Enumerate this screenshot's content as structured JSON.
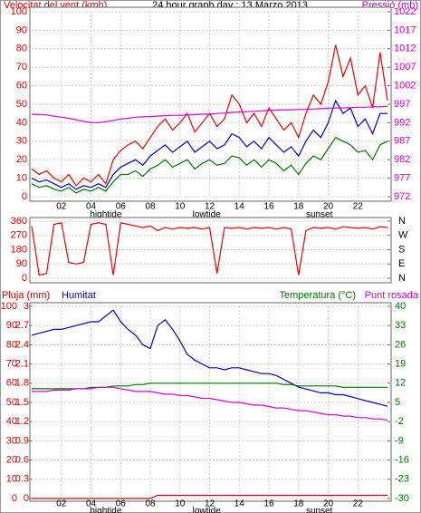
{
  "chart_data": [
    {
      "type": "line",
      "title": "24 hour graph day : 13 Marzo 2013",
      "ylabel": "Velocitat del vent (kmh)",
      "y2label": "Pressió (mb)",
      "ycolor": "#dd0000",
      "y2color": "#cc00cc",
      "grid": true,
      "x": [
        0,
        0.5,
        1,
        1.5,
        2,
        2.5,
        3,
        3.5,
        4,
        4.5,
        5,
        5.5,
        6,
        6.5,
        7,
        7.5,
        8,
        8.5,
        9,
        9.5,
        10,
        10.5,
        11,
        11.5,
        12,
        12.5,
        13,
        13.5,
        14,
        14.5,
        15,
        15.5,
        16,
        16.5,
        17,
        17.5,
        18,
        18.5,
        19,
        19.5,
        20,
        20.5,
        21,
        21.5,
        22,
        22.5,
        23,
        23.5,
        24
      ],
      "xlim": [
        0,
        24
      ],
      "xticks": [
        {
          "value": 2,
          "label": "02"
        },
        {
          "value": 4,
          "label": "04"
        },
        {
          "value": 6,
          "label": "06"
        },
        {
          "value": 8,
          "label": "08"
        },
        10,
        12,
        14,
        16,
        18,
        20,
        22
      ],
      "ylim": [
        0,
        100
      ],
      "yticks": [
        0,
        10,
        20,
        30,
        40,
        50,
        60,
        70,
        80,
        90,
        100
      ],
      "y2lim": [
        972,
        1022
      ],
      "y2ticks": [
        972,
        977,
        982,
        987,
        992,
        997,
        1002,
        1007,
        1012,
        1017,
        1022
      ],
      "annotations": [
        {
          "text": "hightide",
          "x": 5
        },
        {
          "text": "lowtide",
          "x": 11.8
        },
        {
          "text": "sunset",
          "x": 19.4
        }
      ],
      "series": [
        {
          "color": "#ee0000",
          "values": [
            15,
            12,
            14,
            10,
            8,
            12,
            6,
            10,
            8,
            12,
            7,
            20,
            25,
            28,
            30,
            26,
            32,
            38,
            42,
            36,
            40,
            45,
            35,
            40,
            45,
            38,
            42,
            55,
            50,
            40,
            45,
            38,
            48,
            42,
            36,
            40,
            32,
            45,
            55,
            50,
            62,
            82,
            65,
            75,
            55,
            60,
            48,
            78,
            52
          ]
        },
        {
          "color": "#0000cc",
          "values": [
            10,
            8,
            9,
            7,
            5,
            7,
            4,
            6,
            5,
            7,
            5,
            12,
            16,
            18,
            20,
            17,
            22,
            25,
            28,
            24,
            27,
            30,
            24,
            27,
            30,
            26,
            28,
            34,
            32,
            27,
            30,
            26,
            32,
            28,
            24,
            27,
            22,
            30,
            36,
            32,
            40,
            52,
            45,
            48,
            38,
            42,
            34,
            45,
            45
          ]
        },
        {
          "color": "#007700",
          "values": [
            7,
            5,
            6,
            4,
            3,
            5,
            2,
            4,
            3,
            5,
            3,
            8,
            12,
            12,
            14,
            11,
            15,
            17,
            20,
            16,
            18,
            20,
            15,
            18,
            20,
            17,
            18,
            22,
            21,
            17,
            20,
            16,
            20,
            18,
            14,
            17,
            12,
            18,
            22,
            20,
            26,
            32,
            30,
            28,
            24,
            25,
            20,
            28,
            30
          ]
        },
        {
          "color": "#dd00dd",
          "axis": "y2",
          "values": [
            994.3,
            994.2,
            994.1,
            993.8,
            993.5,
            993.2,
            992.8,
            992.4,
            992.0,
            992.0,
            992.3,
            992.6,
            993.0,
            993.2,
            993.5,
            993.6,
            993.7,
            993.8,
            993.9,
            994.0,
            994.0,
            994.1,
            994.2,
            994.3,
            994.3,
            994.5,
            994.6,
            994.8,
            994.9,
            995.0,
            995.1,
            995.2,
            995.3,
            995.4,
            995.5,
            995.5,
            995.6,
            995.6,
            995.7,
            995.8,
            995.9,
            996.0,
            996.0,
            996.1,
            996.2,
            996.2,
            996.3,
            996.3,
            996.4
          ]
        }
      ]
    },
    {
      "type": "line",
      "ycolor": "#dd0000",
      "y2color": "#000000",
      "grid": true,
      "x": [
        0,
        0.5,
        1,
        1.5,
        2,
        2.5,
        3,
        3.5,
        4,
        4.5,
        5,
        5.5,
        6,
        6.5,
        7,
        7.5,
        8,
        8.5,
        9,
        9.5,
        10,
        10.5,
        11,
        11.5,
        12,
        12.5,
        13,
        13.5,
        14,
        14.5,
        15,
        15.5,
        16,
        16.5,
        17,
        17.5,
        18,
        18.5,
        19,
        19.5,
        20,
        20.5,
        21,
        21.5,
        22,
        22.5,
        23,
        23.5,
        24
      ],
      "xlim": [
        0,
        24
      ],
      "ylim": [
        0,
        360
      ],
      "yticks": [
        0,
        90,
        180,
        270,
        360
      ],
      "y2lim": [
        0,
        360
      ],
      "y2ticks": [
        {
          "value": 0,
          "label": "N"
        },
        {
          "value": 90,
          "label": "E"
        },
        {
          "value": 180,
          "label": "S"
        },
        {
          "value": 270,
          "label": "W"
        },
        {
          "value": 360,
          "label": "N"
        }
      ],
      "series": [
        {
          "color": "#ee0000",
          "values": [
            330,
            20,
            30,
            340,
            350,
            100,
            90,
            100,
            340,
            350,
            340,
            20,
            350,
            340,
            330,
            320,
            330,
            300,
            320,
            310,
            320,
            315,
            320,
            310,
            320,
            30,
            320,
            315,
            320,
            310,
            320,
            315,
            320,
            310,
            320,
            310,
            20,
            300,
            320,
            315,
            320,
            310,
            325,
            320,
            315,
            320,
            310,
            325,
            320
          ]
        }
      ]
    },
    {
      "type": "line",
      "ycolor": "#dd0000",
      "y2color": "#007700",
      "y3color": "#dd0000",
      "grid": true,
      "x": [
        0,
        0.5,
        1,
        1.5,
        2,
        2.5,
        3,
        3.5,
        4,
        4.5,
        5,
        5.5,
        6,
        6.5,
        7,
        7.5,
        8,
        8.5,
        9,
        9.5,
        10,
        10.5,
        11,
        11.5,
        12,
        12.5,
        13,
        13.5,
        14,
        14.5,
        15,
        15.5,
        16,
        16.5,
        17,
        17.5,
        18,
        18.5,
        19,
        19.5,
        20,
        20.5,
        21,
        21.5,
        22,
        22.5,
        23,
        23.5,
        24
      ],
      "xlim": [
        0,
        24
      ],
      "xticks": [
        {
          "value": 2,
          "label": "02"
        },
        {
          "value": 4,
          "label": "04"
        },
        {
          "value": 6,
          "label": "06"
        },
        {
          "value": 8,
          "label": "08"
        },
        10,
        12,
        14,
        16,
        18,
        20,
        22
      ],
      "ylim": [
        0,
        100
      ],
      "yticks": [
        0,
        10,
        20,
        30,
        40,
        50,
        60,
        70,
        80,
        90,
        100
      ],
      "y3lim": [
        0,
        3
      ],
      "y3ticks": [
        0,
        0.3,
        0.6,
        0.9,
        1.2,
        1.5,
        1.8,
        2.1,
        2.4,
        2.7,
        3
      ],
      "y2lim": [
        -30,
        40
      ],
      "y2ticks": [
        -30,
        -23,
        -16,
        -9,
        -2,
        5,
        12,
        19,
        26,
        33,
        40
      ],
      "annotations": [
        {
          "text": "hightide",
          "x": 5
        },
        {
          "text": "lowtide",
          "x": 11.8
        },
        {
          "text": "sunset",
          "x": 19.4
        }
      ],
      "series": [
        {
          "name": "Pluja (mm)",
          "color": "#cc0000",
          "axis": "y3",
          "values": [
            0,
            0,
            0,
            0,
            0,
            0,
            0,
            0,
            0,
            0,
            0,
            0,
            0,
            0,
            0,
            0,
            0,
            0.05,
            0.05,
            0.05,
            0.05,
            0.05,
            0.05,
            0.05,
            0.05,
            0.05,
            0.05,
            0.05,
            0.05,
            0.05,
            0.05,
            0.05,
            0.05,
            0.05,
            0.05,
            0.05,
            0.05,
            0.05,
            0.05,
            0.05,
            0.05,
            0.05,
            0.05,
            0.05,
            0.05,
            0.05,
            0.05,
            0.05,
            0.05
          ]
        },
        {
          "name": "Humitat",
          "color": "#0000bb",
          "values": [
            85,
            86,
            87,
            88,
            88,
            89,
            90,
            91,
            92,
            92,
            95,
            98,
            92,
            88,
            85,
            80,
            78,
            90,
            93,
            88,
            82,
            75,
            72,
            70,
            68,
            68,
            67,
            68,
            68,
            67,
            66,
            65,
            65,
            64,
            62,
            60,
            58,
            57,
            56,
            55,
            55,
            54,
            54,
            53,
            52,
            51,
            50,
            49,
            48
          ]
        },
        {
          "name": "Temperatura (°C)",
          "color": "#007700",
          "axis": "y2",
          "values": [
            10,
            10,
            10,
            10,
            10,
            10,
            10,
            10,
            10.5,
            10.5,
            10.5,
            11,
            11,
            11,
            11.5,
            11.5,
            12,
            12,
            12,
            12,
            12,
            12,
            12,
            12,
            12,
            12,
            12,
            12,
            12,
            12,
            12,
            12,
            12,
            12,
            11.5,
            11.5,
            11,
            11,
            11,
            11,
            11,
            11,
            10.5,
            10.5,
            10.5,
            10.5,
            10.5,
            10.5,
            10.5
          ]
        },
        {
          "name": "Punt rosada",
          "color": "#dd00dd",
          "axis": "y2",
          "values": [
            9,
            9,
            9,
            9.5,
            9.5,
            9.5,
            10,
            10,
            10,
            10.5,
            10.5,
            10.5,
            10,
            9.5,
            9,
            9,
            9,
            8.5,
            8,
            8,
            7.5,
            7.5,
            7,
            6.5,
            6.5,
            6,
            5.5,
            5,
            5,
            4.5,
            4,
            4,
            3.5,
            3,
            3,
            2.5,
            2,
            2,
            1.5,
            1,
            0.5,
            0.5,
            0,
            0,
            -0.5,
            -0.5,
            -1,
            -1,
            -1.5
          ]
        }
      ]
    }
  ]
}
